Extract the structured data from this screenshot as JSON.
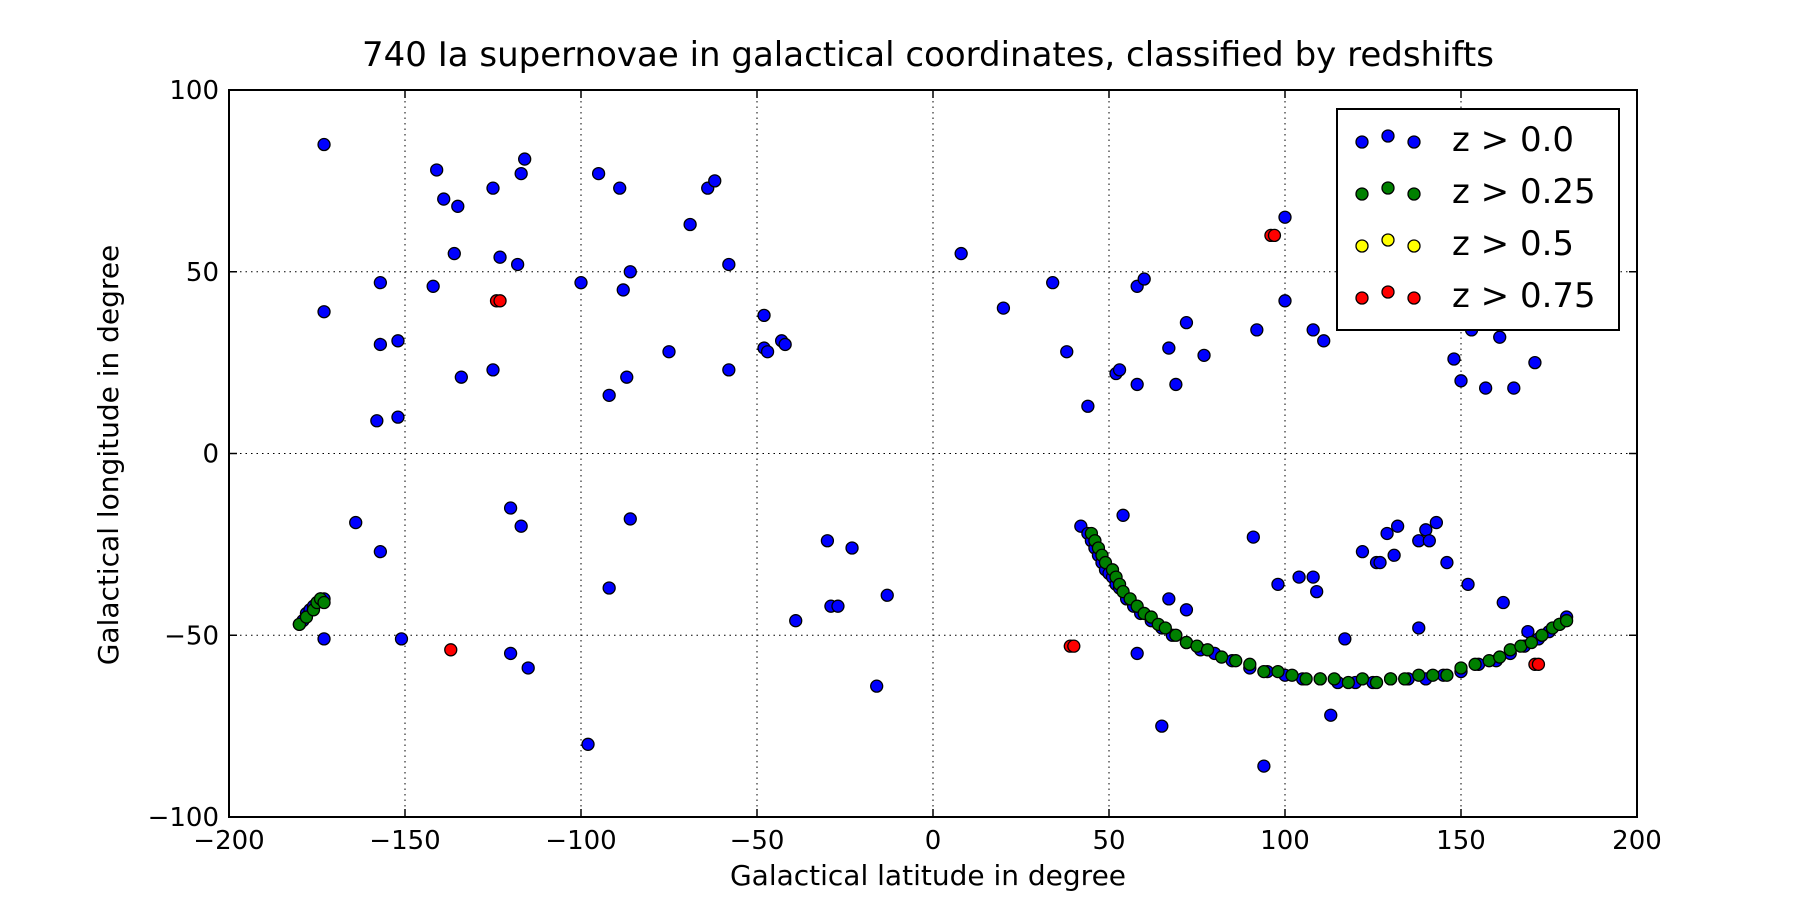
{
  "chart_data": {
    "type": "scatter",
    "title": "740 Ia supernovae in galactical coordinates, classified by redshifts",
    "xlabel": "Galactical latitude in degree",
    "ylabel": "Galactical longitude in degree",
    "xlim": [
      -200,
      200
    ],
    "ylim": [
      -100,
      100
    ],
    "xticks": [
      -200,
      -150,
      -100,
      -50,
      0,
      50,
      100,
      150,
      200
    ],
    "yticks": [
      -100,
      -50,
      0,
      50,
      100
    ],
    "xtick_labels": [
      "−200",
      "−150",
      "−100",
      "−50",
      "0",
      "50",
      "100",
      "150",
      "200"
    ],
    "ytick_labels": [
      "−100",
      "−50",
      "0",
      "50",
      "100"
    ],
    "grid": true,
    "legend_position": "top-right",
    "series": [
      {
        "name": "z > 0.0",
        "color": "#0000ff",
        "points": [
          [
            -173,
            85
          ],
          [
            -173,
            39
          ],
          [
            -173,
            -51
          ],
          [
            -157,
            47
          ],
          [
            -157,
            30
          ],
          [
            -158,
            9
          ],
          [
            -157,
            -27
          ],
          [
            -164,
            -19
          ],
          [
            -152,
            31
          ],
          [
            -152,
            10
          ],
          [
            -151,
            -51
          ],
          [
            -142,
            46
          ],
          [
            -141,
            78
          ],
          [
            -139,
            70
          ],
          [
            -136,
            55
          ],
          [
            -135,
            68
          ],
          [
            -134,
            21
          ],
          [
            -125,
            73
          ],
          [
            -125,
            23
          ],
          [
            -123,
            54
          ],
          [
            -118,
            52
          ],
          [
            -117,
            77
          ],
          [
            -116,
            81
          ],
          [
            -120,
            -15
          ],
          [
            -117,
            -20
          ],
          [
            -120,
            -55
          ],
          [
            -115,
            -59
          ],
          [
            -100,
            47
          ],
          [
            -95,
            77
          ],
          [
            -92,
            16
          ],
          [
            -92,
            -37
          ],
          [
            -89,
            73
          ],
          [
            -88,
            45
          ],
          [
            -87,
            21
          ],
          [
            -86,
            50
          ],
          [
            -86,
            -18
          ],
          [
            -98,
            -80
          ],
          [
            -75,
            28
          ],
          [
            -69,
            63
          ],
          [
            -64,
            73
          ],
          [
            -62,
            75
          ],
          [
            -58,
            52
          ],
          [
            -58,
            23
          ],
          [
            -48,
            38
          ],
          [
            -48,
            29
          ],
          [
            -47,
            28
          ],
          [
            -43,
            31
          ],
          [
            -42,
            30
          ],
          [
            -39,
            -46
          ],
          [
            -30,
            -24
          ],
          [
            -29,
            -42
          ],
          [
            -27,
            -42
          ],
          [
            -23,
            -26
          ],
          [
            -16,
            -64
          ],
          [
            -13,
            -39
          ],
          [
            8,
            55
          ],
          [
            20,
            40
          ],
          [
            34,
            47
          ],
          [
            38,
            28
          ],
          [
            42,
            -20
          ],
          [
            44,
            13
          ],
          [
            52,
            22
          ],
          [
            53,
            23
          ],
          [
            54,
            -17
          ],
          [
            58,
            46
          ],
          [
            58,
            19
          ],
          [
            60,
            48
          ],
          [
            58,
            -55
          ],
          [
            65,
            -75
          ],
          [
            67,
            29
          ],
          [
            67,
            -40
          ],
          [
            69,
            19
          ],
          [
            72,
            36
          ],
          [
            72,
            -43
          ],
          [
            77,
            27
          ],
          [
            91,
            -23
          ],
          [
            92,
            34
          ],
          [
            94,
            -86
          ],
          [
            98,
            -36
          ],
          [
            100,
            65
          ],
          [
            100,
            42
          ],
          [
            104,
            -34
          ],
          [
            108,
            -34
          ],
          [
            108,
            34
          ],
          [
            109,
            -38
          ],
          [
            111,
            31
          ],
          [
            113,
            -72
          ],
          [
            117,
            -51
          ],
          [
            122,
            -27
          ],
          [
            126,
            -30
          ],
          [
            127,
            -30
          ],
          [
            129,
            -22
          ],
          [
            131,
            -28
          ],
          [
            132,
            -20
          ],
          [
            138,
            -24
          ],
          [
            138,
            -48
          ],
          [
            140,
            -21
          ],
          [
            141,
            -24
          ],
          [
            143,
            -19
          ],
          [
            146,
            -30
          ],
          [
            148,
            26
          ],
          [
            150,
            20
          ],
          [
            152,
            -36
          ],
          [
            153,
            34
          ],
          [
            157,
            18
          ],
          [
            161,
            32
          ],
          [
            162,
            -41
          ],
          [
            165,
            18
          ],
          [
            169,
            -49
          ],
          [
            171,
            25
          ],
          [
            -180,
            -47
          ],
          [
            -179,
            -46
          ],
          [
            -178,
            -44
          ],
          [
            -177,
            -43
          ],
          [
            -176,
            -42
          ],
          [
            -175,
            -41
          ],
          [
            -174,
            -40
          ],
          [
            -173,
            -40
          ],
          [
            44,
            -22
          ],
          [
            45,
            -24
          ],
          [
            46,
            -26
          ],
          [
            47,
            -28
          ],
          [
            48,
            -30
          ],
          [
            49,
            -32
          ],
          [
            50,
            -33
          ],
          [
            51,
            -34
          ],
          [
            52,
            -36
          ],
          [
            53,
            -37
          ],
          [
            55,
            -40
          ],
          [
            57,
            -42
          ],
          [
            59,
            -44
          ],
          [
            62,
            -46
          ],
          [
            65,
            -48
          ],
          [
            68,
            -50
          ],
          [
            72,
            -52
          ],
          [
            76,
            -54
          ],
          [
            80,
            -55
          ],
          [
            85,
            -57
          ],
          [
            90,
            -59
          ],
          [
            95,
            -60
          ],
          [
            100,
            -61
          ],
          [
            105,
            -62
          ],
          [
            110,
            -62
          ],
          [
            115,
            -63
          ],
          [
            120,
            -63
          ],
          [
            125,
            -63
          ],
          [
            130,
            -62
          ],
          [
            135,
            -62
          ],
          [
            140,
            -62
          ],
          [
            145,
            -61
          ],
          [
            150,
            -60
          ],
          [
            155,
            -58
          ],
          [
            160,
            -57
          ],
          [
            164,
            -55
          ],
          [
            168,
            -53
          ],
          [
            172,
            -51
          ],
          [
            175,
            -49
          ],
          [
            178,
            -47
          ],
          [
            180,
            -45
          ]
        ]
      },
      {
        "name": "z > 0.25",
        "color": "#008000",
        "points": [
          [
            -180,
            -47
          ],
          [
            -178,
            -45
          ],
          [
            -176,
            -43
          ],
          [
            -175,
            -41
          ],
          [
            -174,
            -40
          ],
          [
            -173,
            -41
          ],
          [
            45,
            -22
          ],
          [
            46,
            -24
          ],
          [
            47,
            -26
          ],
          [
            48,
            -28
          ],
          [
            49,
            -30
          ],
          [
            51,
            -32
          ],
          [
            52,
            -34
          ],
          [
            53,
            -36
          ],
          [
            54,
            -38
          ],
          [
            56,
            -40
          ],
          [
            58,
            -42
          ],
          [
            60,
            -44
          ],
          [
            62,
            -45
          ],
          [
            64,
            -47
          ],
          [
            66,
            -48
          ],
          [
            69,
            -50
          ],
          [
            72,
            -52
          ],
          [
            75,
            -53
          ],
          [
            78,
            -54
          ],
          [
            82,
            -56
          ],
          [
            86,
            -57
          ],
          [
            90,
            -58
          ],
          [
            94,
            -60
          ],
          [
            98,
            -60
          ],
          [
            102,
            -61
          ],
          [
            106,
            -62
          ],
          [
            110,
            -62
          ],
          [
            114,
            -62
          ],
          [
            118,
            -63
          ],
          [
            122,
            -62
          ],
          [
            126,
            -63
          ],
          [
            130,
            -62
          ],
          [
            134,
            -62
          ],
          [
            138,
            -61
          ],
          [
            142,
            -61
          ],
          [
            146,
            -61
          ],
          [
            150,
            -59
          ],
          [
            154,
            -58
          ],
          [
            158,
            -57
          ],
          [
            161,
            -56
          ],
          [
            164,
            -54
          ],
          [
            167,
            -53
          ],
          [
            170,
            -52
          ],
          [
            173,
            -50
          ],
          [
            176,
            -48
          ],
          [
            178,
            -47
          ],
          [
            180,
            -46
          ]
        ]
      },
      {
        "name": "z > 0.5",
        "color": "#ffff00",
        "points": []
      },
      {
        "name": "z > 0.75",
        "color": "#ff0000",
        "points": [
          [
            -137,
            -54
          ],
          [
            -124,
            42
          ],
          [
            -123,
            42
          ],
          [
            39,
            -53
          ],
          [
            40,
            -53
          ],
          [
            96,
            60
          ],
          [
            97,
            60
          ],
          [
            171,
            -58
          ],
          [
            172,
            -58
          ]
        ]
      }
    ]
  }
}
